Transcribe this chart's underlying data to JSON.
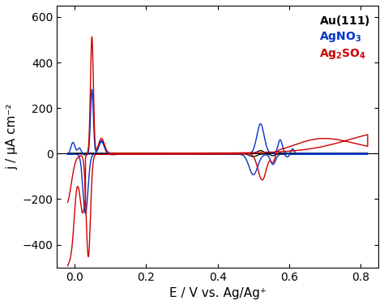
{
  "title": "",
  "xlabel": "E / V vs. Ag/Ag⁺",
  "ylabel": "j / µA cm⁻²",
  "xlim": [
    -0.05,
    0.85
  ],
  "ylim": [
    -500,
    650
  ],
  "yticks": [
    -400,
    -200,
    0,
    200,
    400,
    600
  ],
  "xticks": [
    0.0,
    0.2,
    0.4,
    0.6,
    0.8
  ],
  "legend_labels_math": [
    "Au(111)",
    "$\\mathbf{AgNO_3}$",
    "$\\mathbf{Ag_2SO_4}$"
  ],
  "legend_colors": [
    "black",
    "#0033cc",
    "#cc0000"
  ],
  "line_colors": {
    "black": "#000000",
    "blue": "#0033cc",
    "red": "#cc0000"
  },
  "background_color": "#ffffff"
}
